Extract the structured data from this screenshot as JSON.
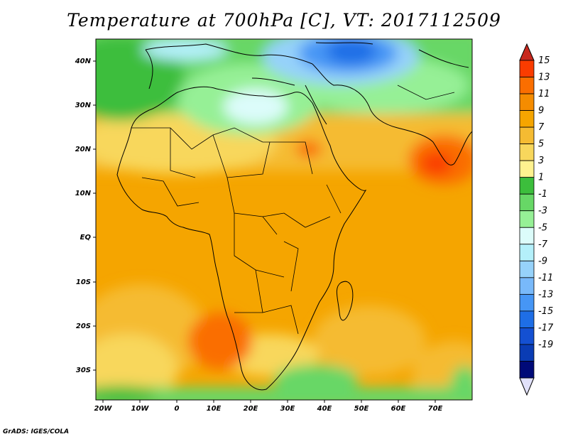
{
  "title": "Temperature at 700hPa [C], VT: 2017112509",
  "credit": "GrADS: IGES/COLA",
  "lat_labels": [
    "40N",
    "30N",
    "20N",
    "10N",
    "EQ",
    "10S",
    "20S",
    "30S"
  ],
  "lon_labels": [
    "20W",
    "10W",
    "0",
    "10E",
    "20E",
    "30E",
    "40E",
    "50E",
    "60E",
    "70E"
  ],
  "colorbar": {
    "labels": [
      "15",
      "13",
      "11",
      "9",
      "7",
      "5",
      "3",
      "1",
      "-1",
      "-3",
      "-5",
      "-7",
      "-9",
      "-11",
      "-13",
      "-15",
      "-17",
      "-19"
    ],
    "colors": [
      "#fa3c00",
      "#fa6e00",
      "#f58c00",
      "#f5a500",
      "#f5bb32",
      "#f8d75c",
      "#fff28f",
      "#3cbe3c",
      "#67d766",
      "#96f096",
      "#dcfcfa",
      "#b4f0fa",
      "#96d2fa",
      "#78b9fa",
      "#4696f5",
      "#1e6ee6",
      "#1450d2",
      "#0a3cb4",
      "#000a78"
    ],
    "top_arrow_color": "#c8281e",
    "bottom_arrow_color": "#e1e1fa"
  }
}
